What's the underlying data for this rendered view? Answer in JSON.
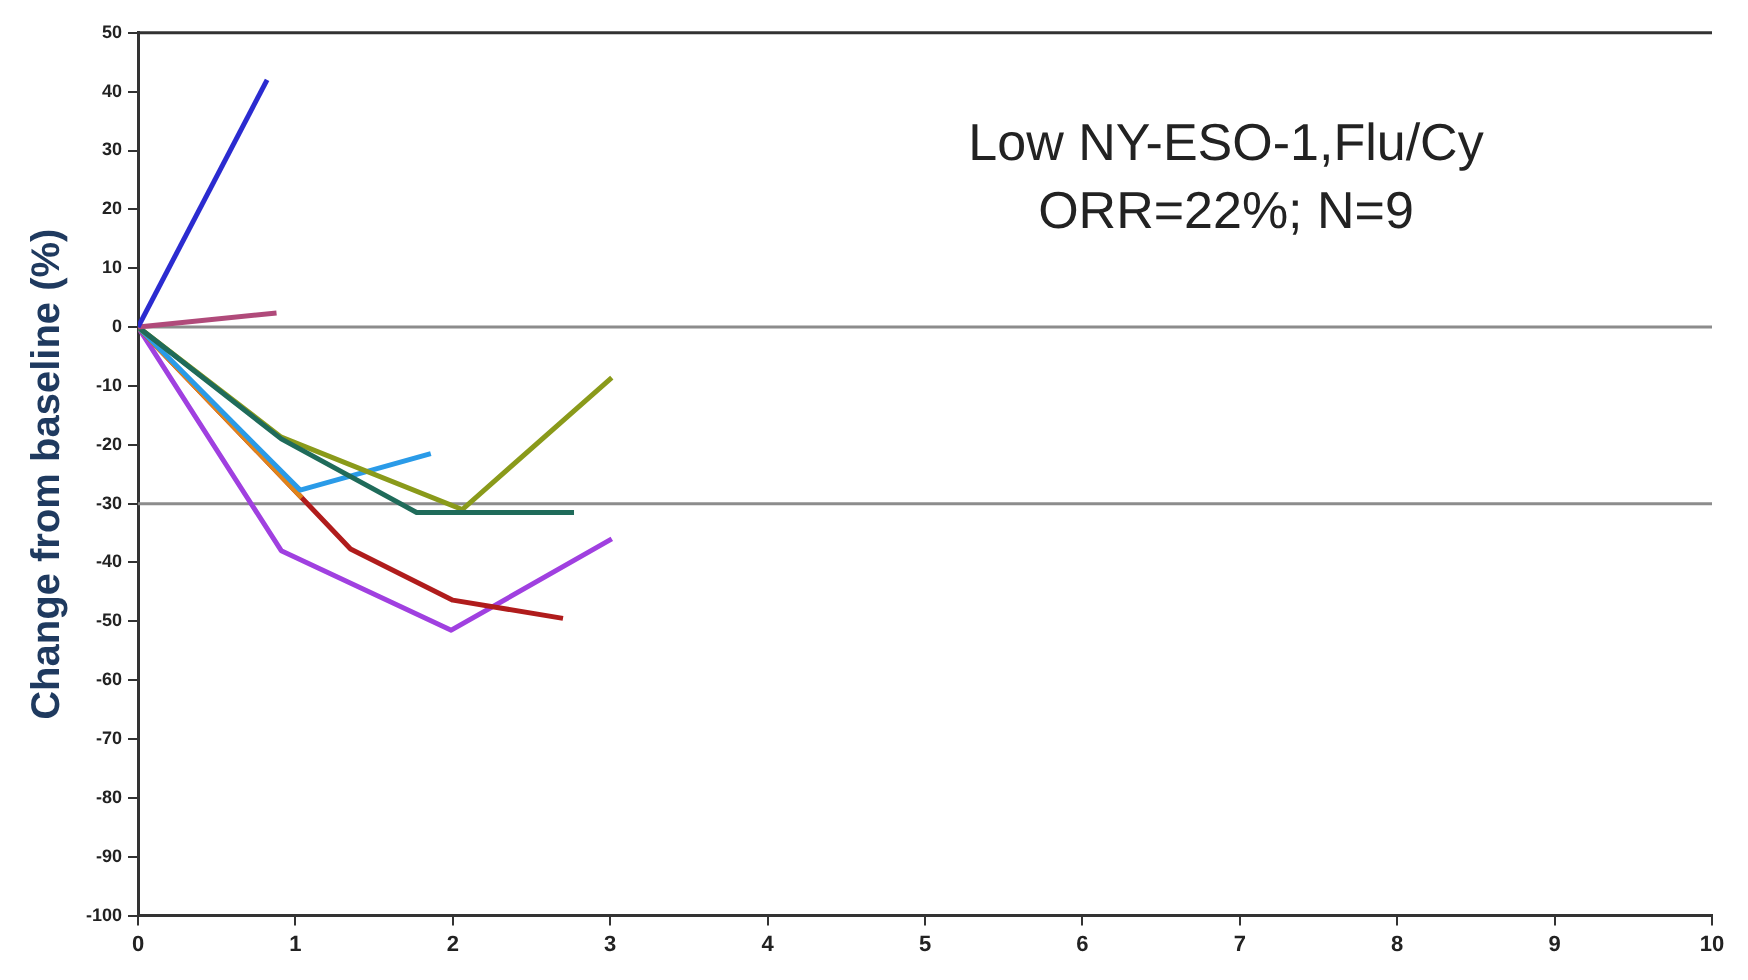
{
  "chart_data": {
    "type": "line",
    "ylabel": "Change from baseline (%)",
    "annotations": [
      "Low NY-ESO-1,Flu/Cy",
      "ORR=22%; N=9"
    ],
    "xlim": [
      0,
      10
    ],
    "xticks": [
      0,
      1,
      2,
      3,
      4,
      5,
      6,
      7,
      8,
      9,
      10
    ],
    "ylim": [
      -100,
      50
    ],
    "yticks": [
      -100,
      -90,
      -80,
      -70,
      -60,
      -50,
      -40,
      -30,
      -20,
      -10,
      0,
      10,
      20,
      30,
      40,
      50
    ],
    "grid": false,
    "legend": false,
    "marker": "none",
    "line_style": "solid",
    "ref_lines": [
      {
        "axis": "y",
        "value": 0,
        "color": "#8c8c8c"
      },
      {
        "axis": "y",
        "value": -30,
        "color": "#8c8c8c"
      }
    ],
    "series": [
      {
        "color": "#2b2bd0",
        "x": [
          0,
          0.82
        ],
        "values": [
          0,
          42
        ]
      },
      {
        "color": "#b04a7a",
        "x": [
          0,
          0.88
        ],
        "values": [
          0,
          2.4
        ]
      },
      {
        "color": "#1f6b5a",
        "x": [
          0,
          0.91,
          1.77,
          2.77
        ],
        "values": [
          0,
          -19,
          -31.5,
          -31.5
        ]
      },
      {
        "color": "#8a9a1a",
        "x": [
          0,
          0.91,
          2.06,
          3.01
        ],
        "values": [
          0,
          -18.7,
          -31,
          -8.6
        ]
      },
      {
        "color": "#2a9be8",
        "x": [
          0,
          1.03,
          1.86
        ],
        "values": [
          0,
          -27.7,
          -21.5
        ]
      },
      {
        "color": "#e0841a",
        "x": [
          0,
          1.04
        ],
        "values": [
          0,
          -29
        ]
      },
      {
        "color": "#b01c1c",
        "x": [
          0,
          1.04,
          1.35,
          2.0,
          2.7
        ],
        "values": [
          0,
          -29,
          -37.7,
          -46.4,
          -49.5
        ]
      },
      {
        "color": "#a040e0",
        "x": [
          0,
          0.91,
          1.99,
          3.01
        ],
        "values": [
          0,
          -38,
          -51.5,
          -36
        ]
      }
    ]
  }
}
